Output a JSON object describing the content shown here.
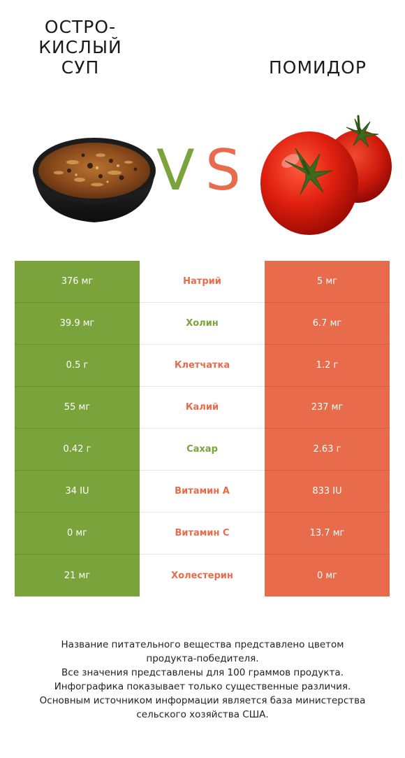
{
  "foods": {
    "left": {
      "title": "ОСТРО-\nКИСЛЫЙ\nСУП",
      "color": "#7ba33c"
    },
    "right": {
      "title": "ПОМИДОР",
      "color": "#e86b4b"
    }
  },
  "vs": {
    "v": "V",
    "s": "S"
  },
  "rows": [
    {
      "nutrient": "Натрий",
      "left": "376 мг",
      "right": "5 мг",
      "winner": "right"
    },
    {
      "nutrient": "Холин",
      "left": "39.9 мг",
      "right": "6.7 мг",
      "winner": "left"
    },
    {
      "nutrient": "Клетчатка",
      "left": "0.5 г",
      "right": "1.2 г",
      "winner": "right"
    },
    {
      "nutrient": "Калий",
      "left": "55 мг",
      "right": "237 мг",
      "winner": "right"
    },
    {
      "nutrient": "Сахар",
      "left": "0.42 г",
      "right": "2.63 г",
      "winner": "left"
    },
    {
      "nutrient": "Витамин A",
      "left": "34 IU",
      "right": "833 IU",
      "winner": "right"
    },
    {
      "nutrient": "Витамин C",
      "left": "0 мг",
      "right": "13.7 мг",
      "winner": "right"
    },
    {
      "nutrient": "Холестерин",
      "left": "21 мг",
      "right": "0 мг",
      "winner": "right"
    }
  ],
  "footnote": [
    "Название питательного вещества представлено цветом",
    "продукта-победителя.",
    "Все значения представлены для 100 граммов продукта.",
    "Инфографика показывает только существенные различия.",
    "Основным источником информации является база министерства",
    "сельского хозяйства США."
  ]
}
